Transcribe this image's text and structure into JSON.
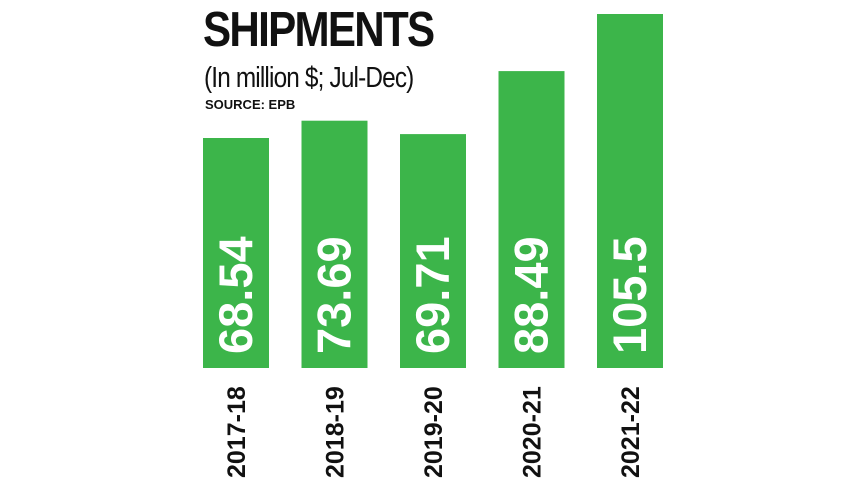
{
  "chart_data": {
    "type": "bar",
    "title": "SHIPMENTS",
    "subtitle": "(In million $; Jul-Dec)",
    "source": "SOURCE: EPB",
    "categories": [
      "2017-18",
      "2018-19",
      "2019-20",
      "2020-21",
      "2021-22"
    ],
    "values": [
      68.54,
      73.69,
      69.71,
      88.49,
      105.5
    ],
    "value_labels": [
      "68.54",
      "73.69",
      "69.71",
      "88.49",
      "105.5"
    ],
    "bar_color": "#3cb54a",
    "ylim": [
      0,
      105.5
    ],
    "grid": false,
    "legend": "none"
  }
}
